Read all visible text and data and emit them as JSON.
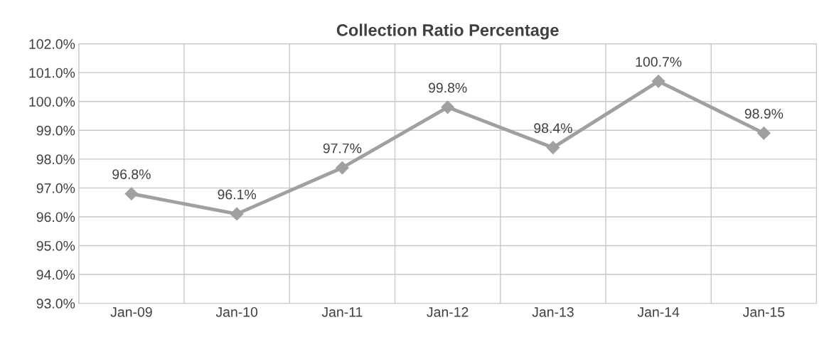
{
  "chart_data": {
    "type": "line",
    "title": "Collection Ratio Percentage",
    "categories": [
      "Jan-09",
      "Jan-10",
      "Jan-11",
      "Jan-12",
      "Jan-13",
      "Jan-14",
      "Jan-15"
    ],
    "series": [
      {
        "color": "#a0a0a0",
        "values": [
          96.8,
          96.1,
          97.7,
          99.8,
          98.4,
          100.7,
          98.9
        ],
        "value_labels": [
          "96.8%",
          "96.1%",
          "97.7%",
          "99.8%",
          "98.4%",
          "100.7%",
          "98.9%"
        ]
      }
    ],
    "ylim": [
      93,
      102
    ],
    "yticks": [
      {
        "value": 93,
        "label": "93.0%"
      },
      {
        "value": 94,
        "label": "94.0%"
      },
      {
        "value": 95,
        "label": "95.0%"
      },
      {
        "value": 96,
        "label": "96.0%"
      },
      {
        "value": 97,
        "label": "97.0%"
      },
      {
        "value": 98,
        "label": "98.0%"
      },
      {
        "value": 99,
        "label": "99.0%"
      },
      {
        "value": 100,
        "label": "100.0%"
      },
      {
        "value": 101,
        "label": "101.0%"
      },
      {
        "value": 102,
        "label": "102.0%"
      }
    ],
    "grid": true,
    "marker": "diamond",
    "line_style": "solid",
    "legend": false
  }
}
